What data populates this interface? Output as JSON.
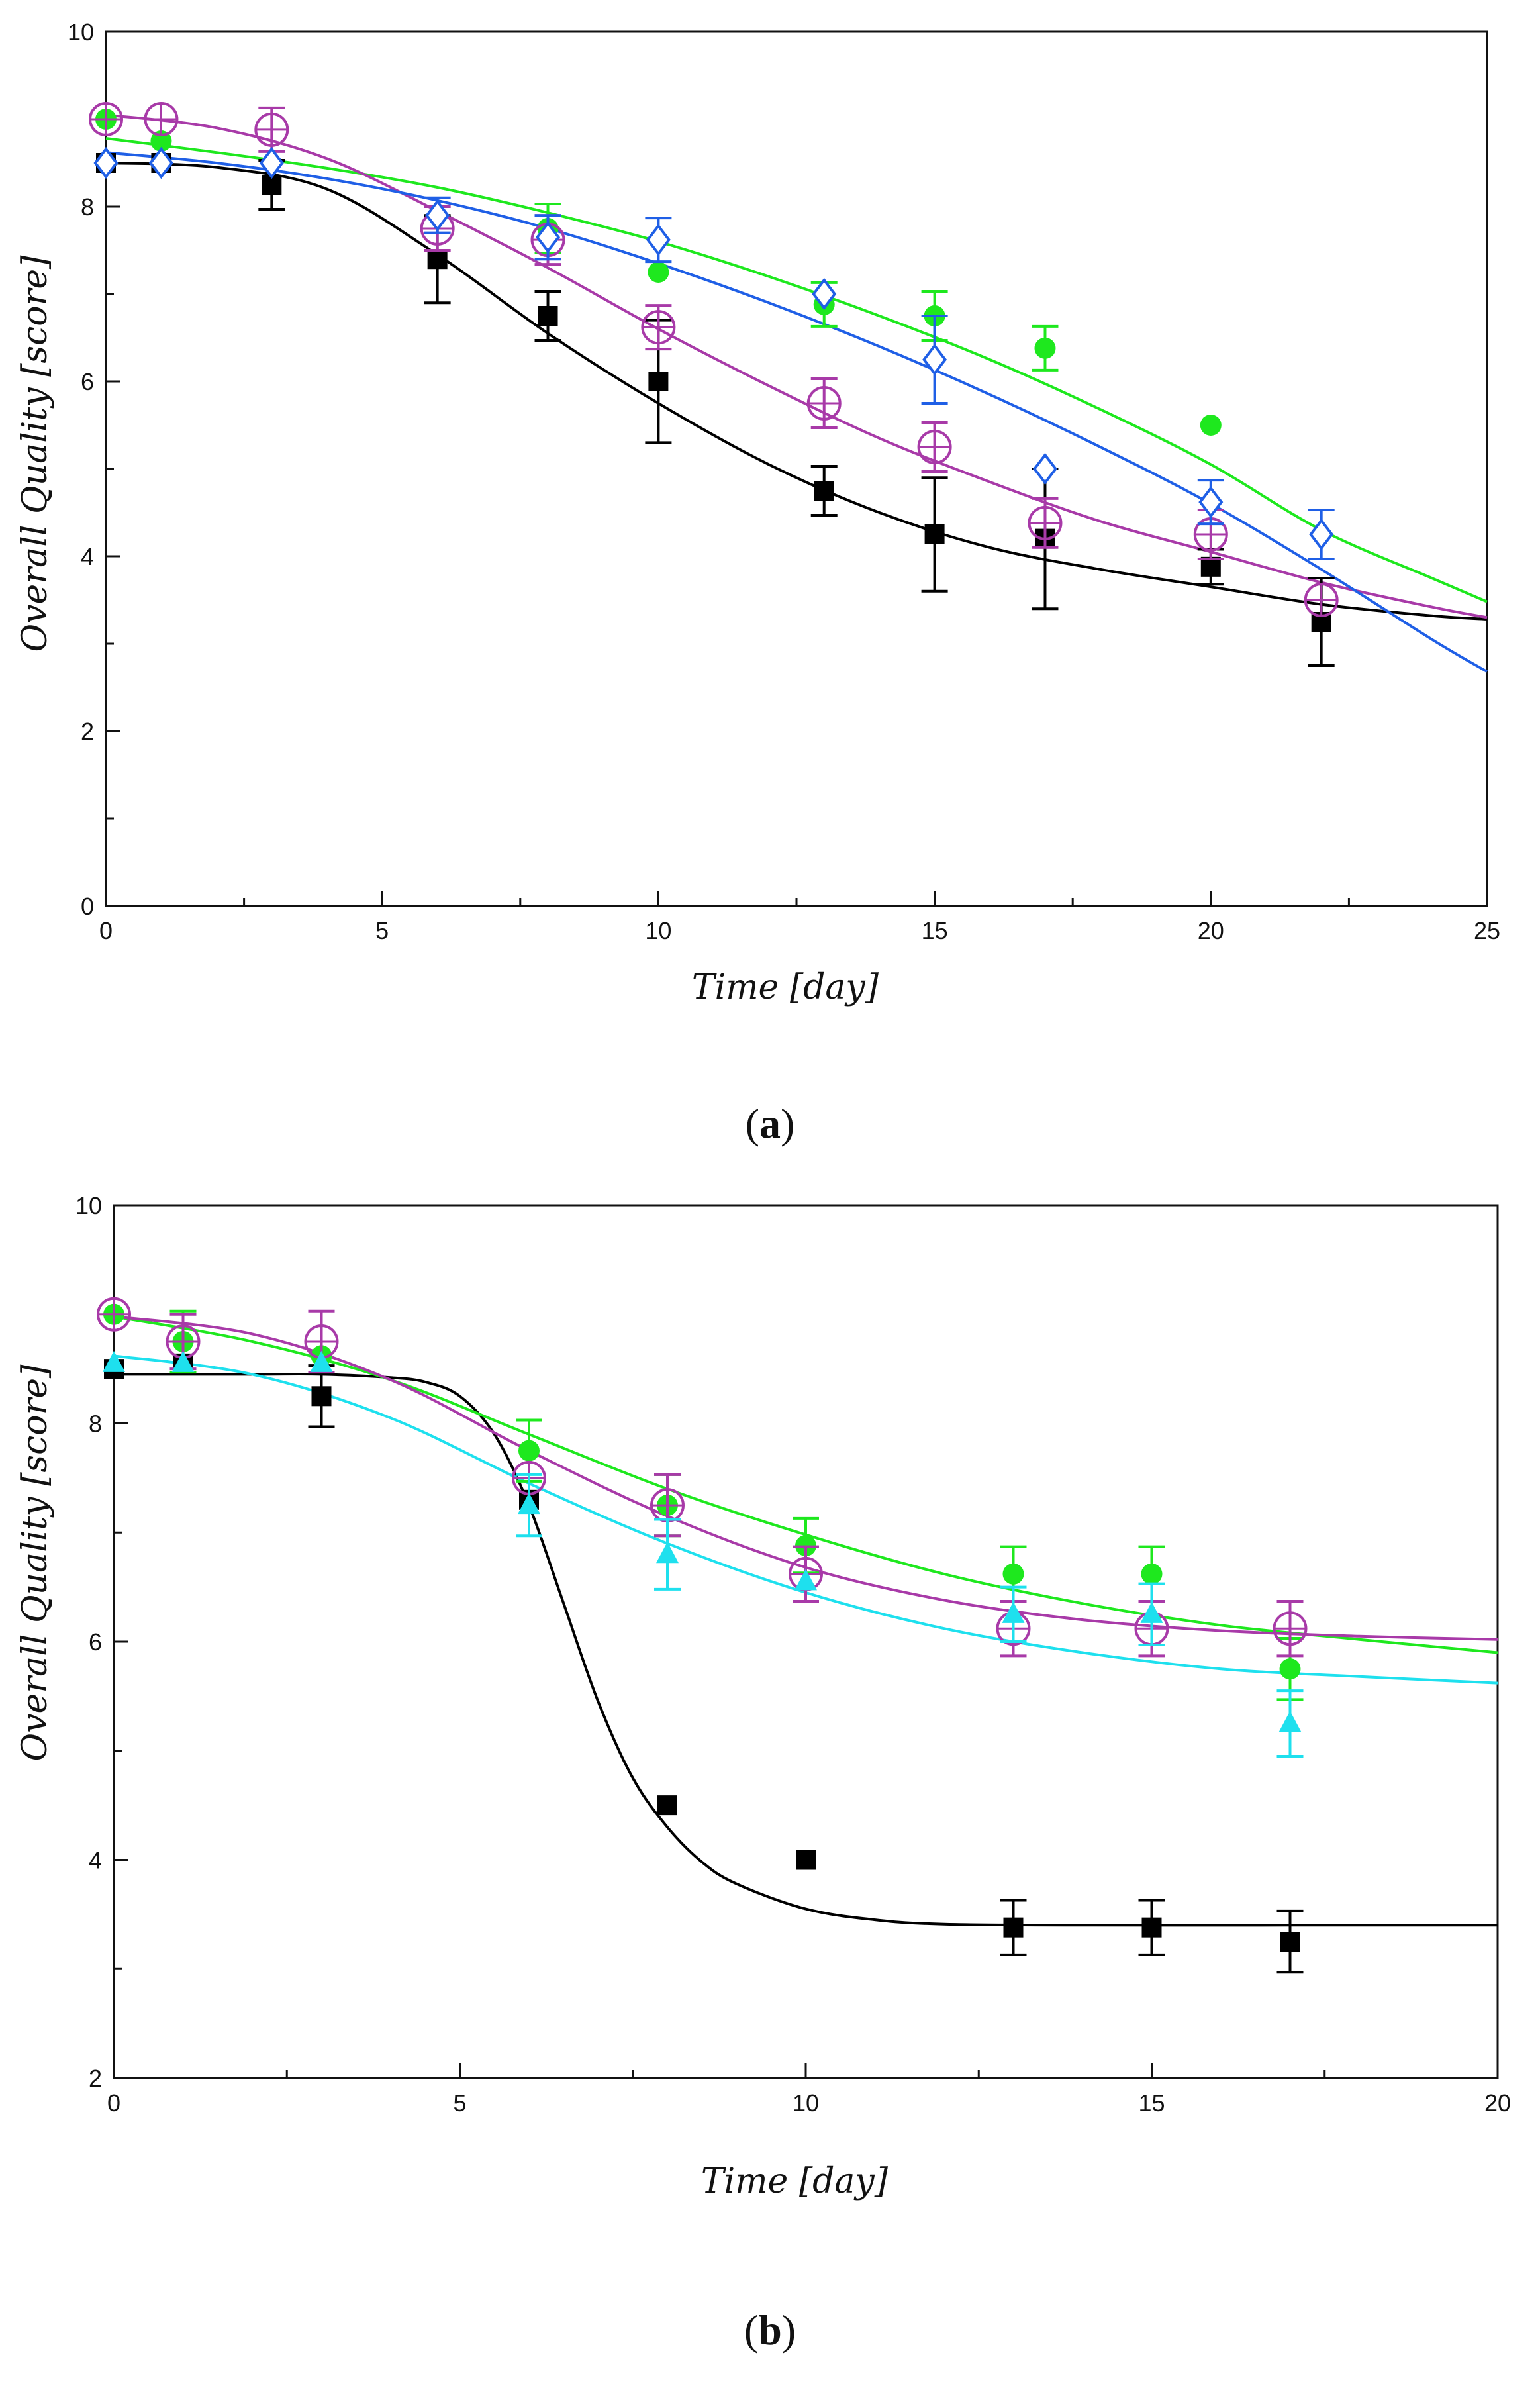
{
  "panels": [
    {
      "label_open": "(",
      "label_letter": "a",
      "label_close": ")"
    },
    {
      "label_open": "(",
      "label_letter": "b",
      "label_close": ")"
    }
  ],
  "chart_data": [
    {
      "type": "scatter",
      "title": "",
      "xlabel": "Time [day]",
      "ylabel": "Overall Quality [score]",
      "xlim": [
        0,
        25
      ],
      "ylim": [
        0,
        10
      ],
      "x_ticks": [
        0,
        5,
        10,
        15,
        20,
        25
      ],
      "x_minor_ticks": [
        2.5,
        7.5,
        12.5,
        17.5,
        22.5
      ],
      "y_ticks": [
        0,
        2,
        4,
        6,
        8,
        10
      ],
      "y_minor_ticks": [
        1,
        3,
        5,
        7,
        9
      ],
      "grid": false,
      "legend": "none",
      "series": [
        {
          "marker": "filled-square",
          "color": "#000000",
          "points": [
            {
              "x": 0,
              "y": 8.5
            },
            {
              "x": 1,
              "y": 8.5
            },
            {
              "x": 3,
              "y": 8.25,
              "err": 0.28
            },
            {
              "x": 6,
              "y": 7.4,
              "err": 0.5
            },
            {
              "x": 8,
              "y": 6.75,
              "err": 0.28
            },
            {
              "x": 10,
              "y": 6.0,
              "err": 0.7
            },
            {
              "x": 13,
              "y": 4.75,
              "err": 0.28
            },
            {
              "x": 15,
              "y": 4.25,
              "err": 0.65
            },
            {
              "x": 17,
              "y": 4.2,
              "err": 0.8
            },
            {
              "x": 20,
              "y": 3.88,
              "err": 0.2
            },
            {
              "x": 22,
              "y": 3.25,
              "err": 0.5
            }
          ],
          "fit": [
            [
              0,
              8.5
            ],
            [
              2,
              8.45
            ],
            [
              4,
              8.2
            ],
            [
              6,
              7.45
            ],
            [
              8,
              6.55
            ],
            [
              10,
              5.75
            ],
            [
              12,
              5.05
            ],
            [
              14,
              4.5
            ],
            [
              16,
              4.1
            ],
            [
              18,
              3.85
            ],
            [
              20,
              3.65
            ],
            [
              22,
              3.45
            ],
            [
              24,
              3.32
            ],
            [
              25,
              3.28
            ]
          ]
        },
        {
          "marker": "filled-circle",
          "color": "#1ee81e",
          "points": [
            {
              "x": 0,
              "y": 9.0
            },
            {
              "x": 1,
              "y": 8.75
            },
            {
              "x": 8,
              "y": 7.75,
              "err": 0.28
            },
            {
              "x": 10,
              "y": 7.25
            },
            {
              "x": 13,
              "y": 6.88,
              "err": 0.25
            },
            {
              "x": 15,
              "y": 6.75,
              "err": 0.28
            },
            {
              "x": 17,
              "y": 6.38,
              "err": 0.25
            },
            {
              "x": 20,
              "y": 5.5
            }
          ],
          "fit": [
            [
              0,
              8.78
            ],
            [
              2,
              8.62
            ],
            [
              4,
              8.44
            ],
            [
              6,
              8.22
            ],
            [
              8,
              7.93
            ],
            [
              10,
              7.6
            ],
            [
              12,
              7.2
            ],
            [
              14,
              6.75
            ],
            [
              16,
              6.25
            ],
            [
              18,
              5.68
            ],
            [
              20,
              5.05
            ],
            [
              22,
              4.3
            ],
            [
              24,
              3.75
            ],
            [
              25,
              3.48
            ]
          ]
        },
        {
          "marker": "open-circle-plus",
          "color": "#a83aa8",
          "points": [
            {
              "x": 0,
              "y": 9.0
            },
            {
              "x": 1,
              "y": 9.0
            },
            {
              "x": 3,
              "y": 8.88,
              "err": 0.25
            },
            {
              "x": 6,
              "y": 7.75,
              "err": 0.25
            },
            {
              "x": 8,
              "y": 7.62,
              "err": 0.28
            },
            {
              "x": 10,
              "y": 6.62,
              "err": 0.25
            },
            {
              "x": 13,
              "y": 5.75,
              "err": 0.28
            },
            {
              "x": 15,
              "y": 5.25,
              "err": 0.28
            },
            {
              "x": 17,
              "y": 4.38,
              "err": 0.28
            },
            {
              "x": 20,
              "y": 4.25,
              "err": 0.28
            },
            {
              "x": 22,
              "y": 3.5
            }
          ],
          "fit": [
            [
              0,
              9.05
            ],
            [
              2,
              8.9
            ],
            [
              4,
              8.55
            ],
            [
              6,
              7.95
            ],
            [
              8,
              7.3
            ],
            [
              10,
              6.6
            ],
            [
              12,
              5.95
            ],
            [
              14,
              5.35
            ],
            [
              16,
              4.85
            ],
            [
              18,
              4.4
            ],
            [
              20,
              4.05
            ],
            [
              22,
              3.7
            ],
            [
              24,
              3.42
            ],
            [
              25,
              3.3
            ]
          ]
        },
        {
          "marker": "open-diamond",
          "color": "#1f5fe6",
          "points": [
            {
              "x": 0,
              "y": 8.5
            },
            {
              "x": 1,
              "y": 8.5
            },
            {
              "x": 3,
              "y": 8.5
            },
            {
              "x": 6,
              "y": 7.9,
              "err": 0.2
            },
            {
              "x": 8,
              "y": 7.65,
              "err": 0.25
            },
            {
              "x": 10,
              "y": 7.62,
              "err": 0.25
            },
            {
              "x": 13,
              "y": 7.0
            },
            {
              "x": 15,
              "y": 6.25,
              "err": 0.5
            },
            {
              "x": 17,
              "y": 5.0
            },
            {
              "x": 20,
              "y": 4.62,
              "err": 0.25
            },
            {
              "x": 22,
              "y": 4.25,
              "err": 0.28
            }
          ],
          "fit": [
            [
              0,
              8.62
            ],
            [
              2,
              8.5
            ],
            [
              4,
              8.32
            ],
            [
              6,
              8.07
            ],
            [
              8,
              7.75
            ],
            [
              10,
              7.35
            ],
            [
              12,
              6.9
            ],
            [
              14,
              6.4
            ],
            [
              16,
              5.85
            ],
            [
              18,
              5.25
            ],
            [
              20,
              4.6
            ],
            [
              22,
              3.85
            ],
            [
              24,
              3.05
            ],
            [
              25,
              2.68
            ]
          ]
        }
      ]
    },
    {
      "type": "scatter",
      "title": "",
      "xlabel": "Time [day]",
      "ylabel": "Overall Quality [score]",
      "xlim": [
        0,
        20
      ],
      "ylim": [
        2,
        10
      ],
      "x_ticks": [
        0,
        5,
        10,
        15,
        20
      ],
      "x_minor_ticks": [
        2.5,
        7.5,
        12.5,
        17.5
      ],
      "y_ticks": [
        2,
        4,
        6,
        8,
        10
      ],
      "y_minor_ticks": [
        3,
        5,
        7,
        9
      ],
      "grid": false,
      "legend": "none",
      "series": [
        {
          "marker": "filled-square",
          "color": "#000000",
          "points": [
            {
              "x": 0,
              "y": 8.5
            },
            {
              "x": 1,
              "y": 8.55
            },
            {
              "x": 3,
              "y": 8.25,
              "err": 0.28
            },
            {
              "x": 6,
              "y": 7.3
            },
            {
              "x": 8,
              "y": 4.5
            },
            {
              "x": 10,
              "y": 4.0
            },
            {
              "x": 13,
              "y": 3.38,
              "err": 0.25
            },
            {
              "x": 15,
              "y": 3.38,
              "err": 0.25
            },
            {
              "x": 17,
              "y": 3.25,
              "err": 0.28
            }
          ],
          "fit": [
            [
              0,
              8.45
            ],
            [
              2,
              8.45
            ],
            [
              3,
              8.45
            ],
            [
              4,
              8.42
            ],
            [
              4.5,
              8.38
            ],
            [
              5,
              8.25
            ],
            [
              5.5,
              7.9
            ],
            [
              6,
              7.25
            ],
            [
              6.5,
              6.35
            ],
            [
              7,
              5.45
            ],
            [
              7.5,
              4.75
            ],
            [
              8,
              4.3
            ],
            [
              8.5,
              3.98
            ],
            [
              9,
              3.78
            ],
            [
              10,
              3.55
            ],
            [
              11,
              3.45
            ],
            [
              12,
              3.41
            ],
            [
              14,
              3.4
            ],
            [
              17,
              3.4
            ],
            [
              20,
              3.4
            ]
          ]
        },
        {
          "marker": "filled-circle",
          "color": "#1ee81e",
          "points": [
            {
              "x": 0,
              "y": 9.0
            },
            {
              "x": 1,
              "y": 8.75,
              "err": 0.28
            },
            {
              "x": 3,
              "y": 8.62
            },
            {
              "x": 6,
              "y": 7.75,
              "err": 0.28
            },
            {
              "x": 8,
              "y": 7.25,
              "err": 0.28
            },
            {
              "x": 10,
              "y": 6.88,
              "err": 0.25
            },
            {
              "x": 13,
              "y": 6.62,
              "err": 0.25
            },
            {
              "x": 15,
              "y": 6.62,
              "err": 0.25
            },
            {
              "x": 17,
              "y": 5.75,
              "err": 0.28
            }
          ],
          "fit": [
            [
              0,
              8.98
            ],
            [
              2,
              8.75
            ],
            [
              4,
              8.4
            ],
            [
              6,
              7.9
            ],
            [
              8,
              7.4
            ],
            [
              10,
              6.98
            ],
            [
              12,
              6.62
            ],
            [
              14,
              6.35
            ],
            [
              16,
              6.15
            ],
            [
              18,
              6.02
            ],
            [
              20,
              5.9
            ]
          ]
        },
        {
          "marker": "open-circle-plus",
          "color": "#a83aa8",
          "points": [
            {
              "x": 0,
              "y": 9.0
            },
            {
              "x": 1,
              "y": 8.75,
              "err": 0.25
            },
            {
              "x": 3,
              "y": 8.75,
              "err": 0.28
            },
            {
              "x": 6,
              "y": 7.5
            },
            {
              "x": 8,
              "y": 7.25,
              "err": 0.28
            },
            {
              "x": 10,
              "y": 6.62,
              "err": 0.25
            },
            {
              "x": 13,
              "y": 6.12,
              "err": 0.25
            },
            {
              "x": 15,
              "y": 6.12,
              "err": 0.25
            },
            {
              "x": 17,
              "y": 6.12,
              "err": 0.25
            }
          ],
          "fit": [
            [
              0,
              8.98
            ],
            [
              2,
              8.82
            ],
            [
              4,
              8.4
            ],
            [
              6,
              7.75
            ],
            [
              8,
              7.15
            ],
            [
              10,
              6.68
            ],
            [
              12,
              6.38
            ],
            [
              14,
              6.2
            ],
            [
              16,
              6.1
            ],
            [
              18,
              6.05
            ],
            [
              20,
              6.02
            ]
          ]
        },
        {
          "marker": "filled-triangle",
          "color": "#1ee0ee",
          "points": [
            {
              "x": 0,
              "y": 8.55
            },
            {
              "x": 1,
              "y": 8.55
            },
            {
              "x": 3,
              "y": 8.55
            },
            {
              "x": 6,
              "y": 7.25,
              "err": 0.28
            },
            {
              "x": 8,
              "y": 6.8,
              "err": 0.32
            },
            {
              "x": 10,
              "y": 6.55
            },
            {
              "x": 13,
              "y": 6.25,
              "err": 0.25
            },
            {
              "x": 15,
              "y": 6.25,
              "err": 0.28
            },
            {
              "x": 17,
              "y": 5.25,
              "err": 0.3
            }
          ],
          "fit": [
            [
              0,
              8.62
            ],
            [
              2,
              8.45
            ],
            [
              4,
              8.05
            ],
            [
              6,
              7.45
            ],
            [
              8,
              6.9
            ],
            [
              10,
              6.45
            ],
            [
              12,
              6.12
            ],
            [
              14,
              5.9
            ],
            [
              16,
              5.75
            ],
            [
              18,
              5.68
            ],
            [
              20,
              5.62
            ]
          ]
        }
      ]
    }
  ]
}
